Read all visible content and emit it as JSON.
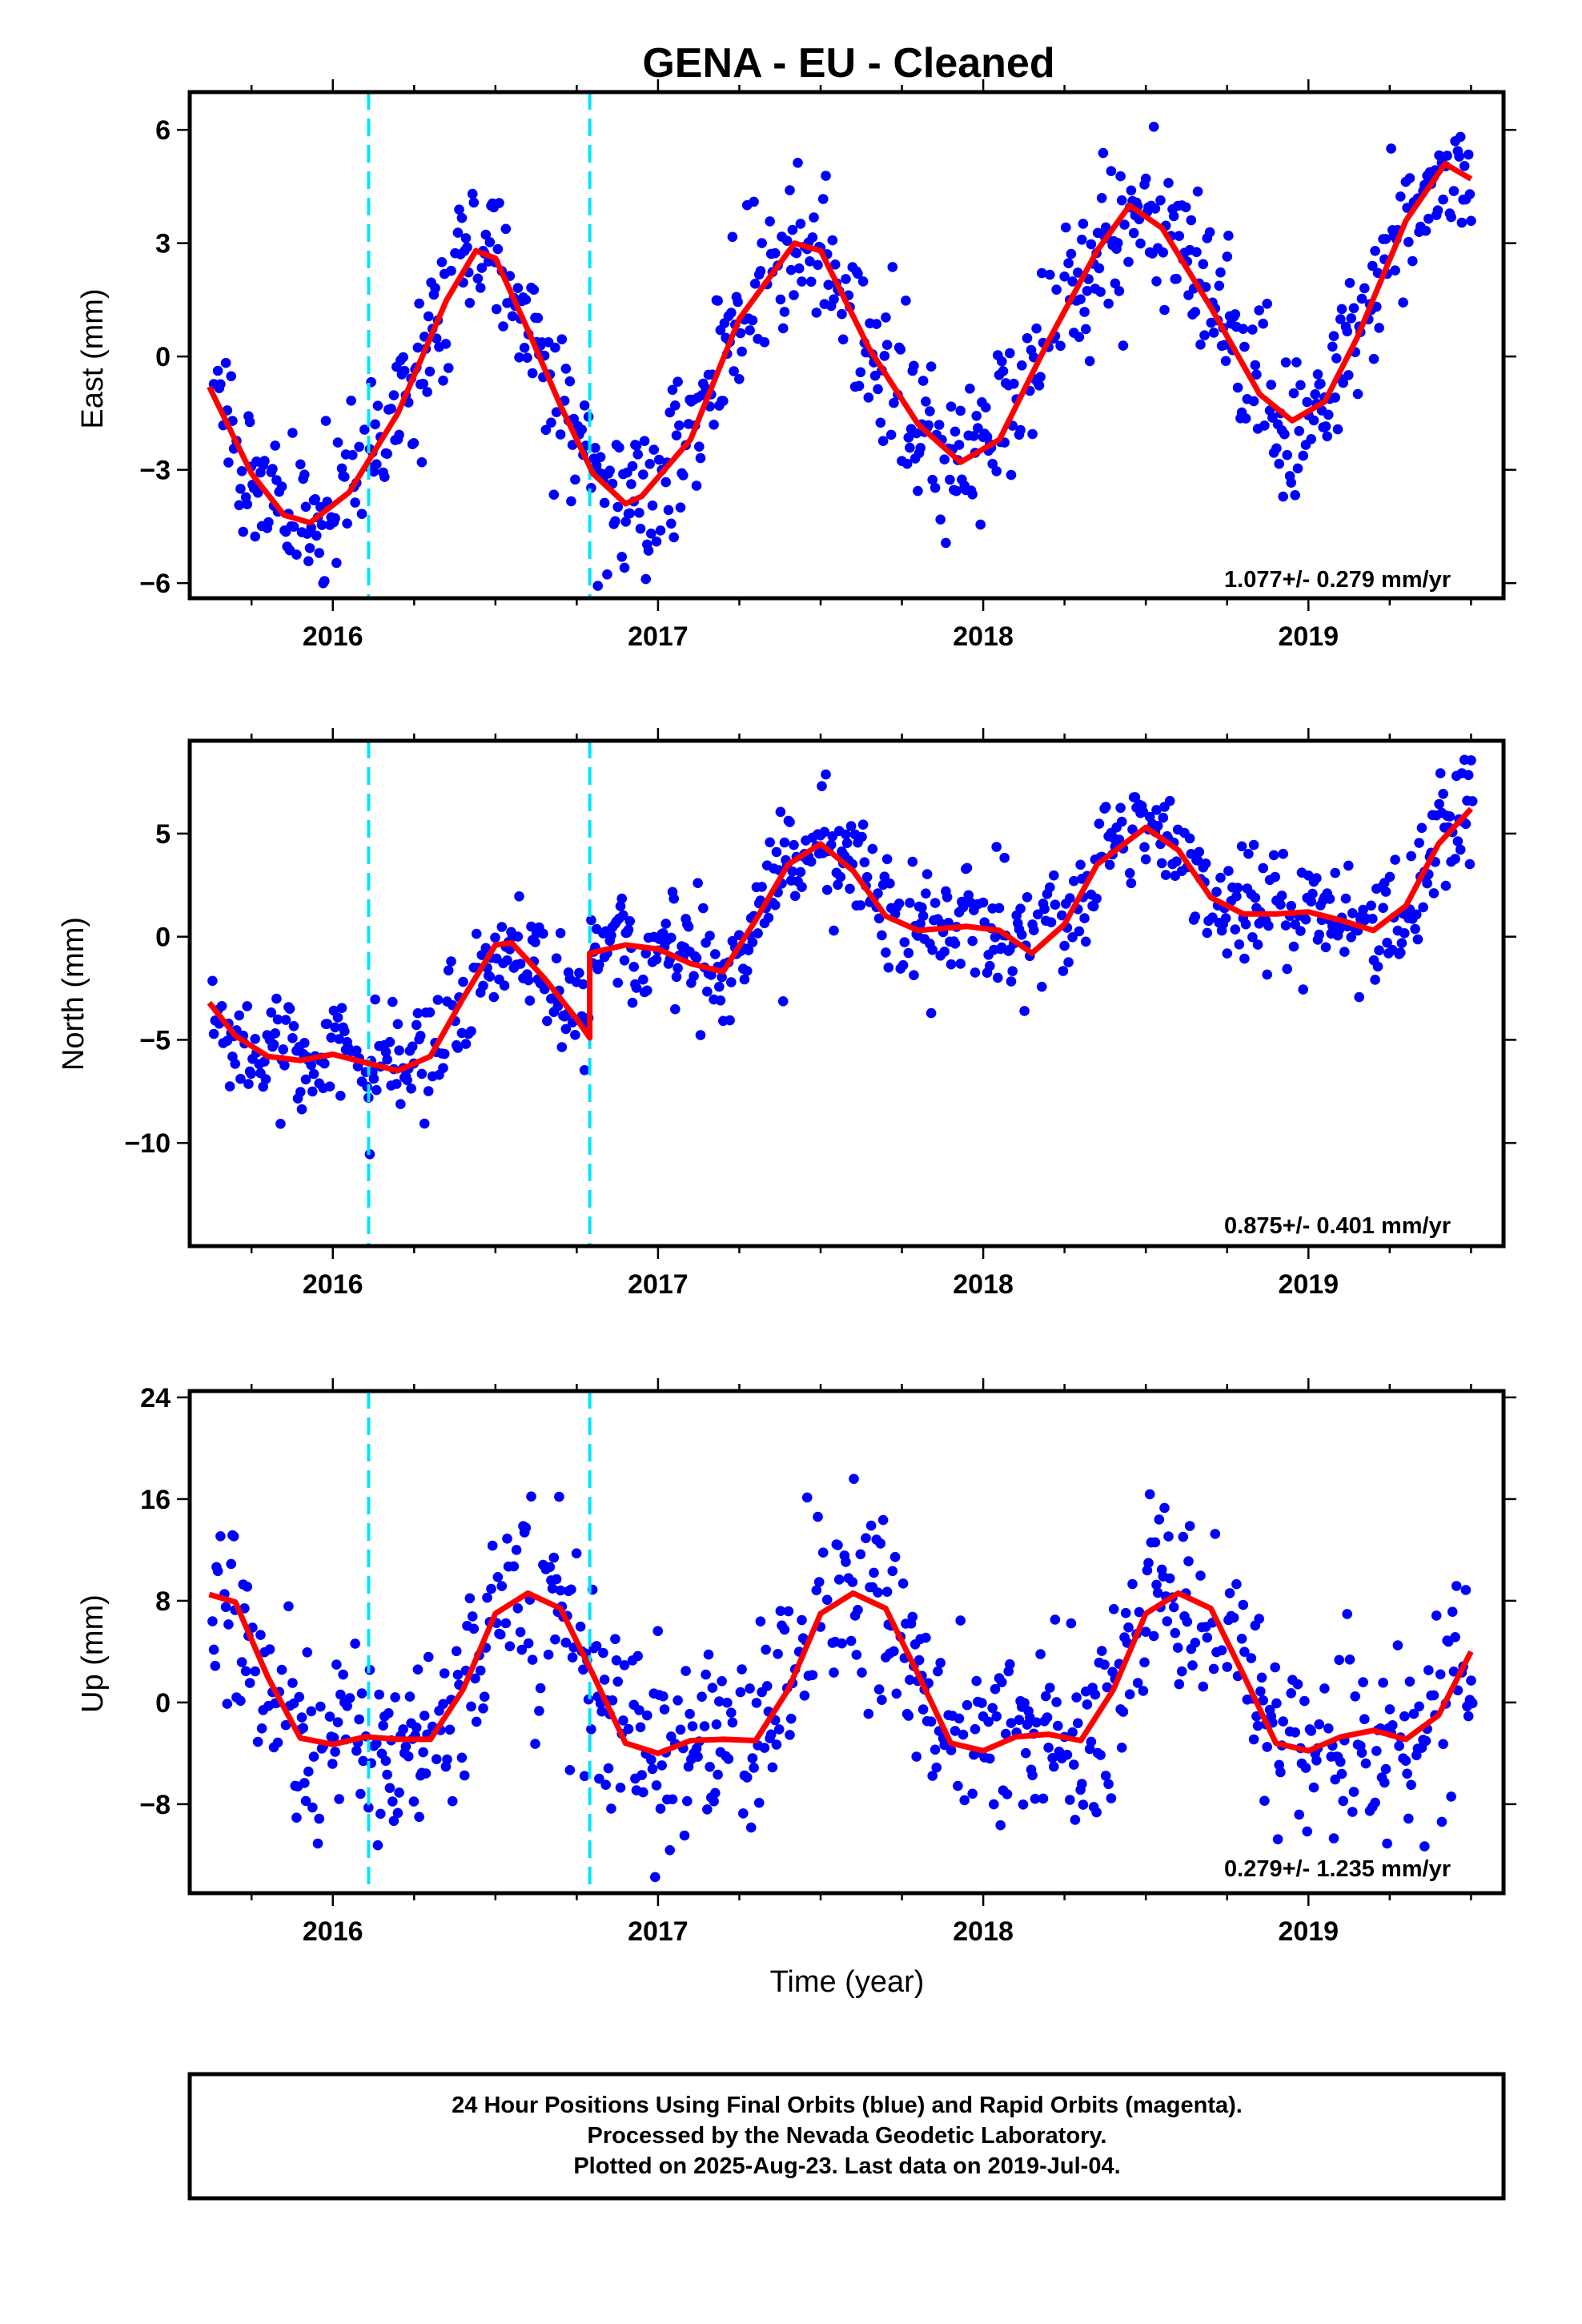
{
  "title": "GENA  - EU - Cleaned",
  "xlabel": "Time (year)",
  "footer": {
    "line1": "24 Hour Positions Using Final Orbits (blue) and Rapid Orbits (magenta).",
    "line2": "Processed by the Nevada Geodetic Laboratory.",
    "line3": "Plotted on 2025-Aug-23. Last data on 2019-Jul-04."
  },
  "colors": {
    "points": "#0000ff",
    "fit": "#ff0000",
    "breaks": "#00e5ff",
    "frame": "#000000"
  },
  "chart_data": [
    {
      "type": "scatter",
      "ylabel": "East (mm)",
      "rate": "1.077+/- 0.279 mm/yr",
      "xlim": [
        2015.56,
        2019.6
      ],
      "ylim": [
        -6.4,
        7.0
      ],
      "xticks": [
        2016,
        2017,
        2018,
        2019
      ],
      "yticks": [
        -6,
        -3,
        0,
        3,
        6
      ],
      "breaks": [
        2016.11,
        2016.79
      ],
      "fit": [
        [
          2015.62,
          -0.8
        ],
        [
          2015.75,
          -3.1
        ],
        [
          2015.85,
          -4.2
        ],
        [
          2015.93,
          -4.4
        ],
        [
          2016.05,
          -3.6
        ],
        [
          2016.2,
          -1.5
        ],
        [
          2016.35,
          1.5
        ],
        [
          2016.44,
          2.8
        ],
        [
          2016.5,
          2.6
        ],
        [
          2016.6,
          0.7
        ],
        [
          2016.7,
          -1.3
        ],
        [
          2016.8,
          -3.1
        ],
        [
          2016.9,
          -3.9
        ],
        [
          2016.95,
          -3.7
        ],
        [
          2017.1,
          -2.2
        ],
        [
          2017.25,
          1.0
        ],
        [
          2017.42,
          3.0
        ],
        [
          2017.5,
          2.8
        ],
        [
          2017.65,
          0.2
        ],
        [
          2017.8,
          -1.8
        ],
        [
          2017.93,
          -2.8
        ],
        [
          2018.05,
          -2.2
        ],
        [
          2018.2,
          0.4
        ],
        [
          2018.35,
          2.8
        ],
        [
          2018.45,
          4.0
        ],
        [
          2018.55,
          3.4
        ],
        [
          2018.7,
          1.3
        ],
        [
          2018.85,
          -1.0
        ],
        [
          2018.95,
          -1.7
        ],
        [
          2019.05,
          -1.2
        ],
        [
          2019.15,
          0.5
        ],
        [
          2019.3,
          3.6
        ],
        [
          2019.42,
          5.1
        ],
        [
          2019.5,
          4.7
        ]
      ]
    },
    {
      "type": "scatter",
      "ylabel": "North (mm)",
      "rate": "0.875+/- 0.401 mm/yr",
      "xlim": [
        2015.56,
        2019.6
      ],
      "ylim": [
        -15.0,
        9.5
      ],
      "xticks": [
        2016,
        2017,
        2018,
        2019
      ],
      "yticks": [
        -10,
        -5,
        0,
        5
      ],
      "breaks": [
        2016.11,
        2016.79
      ],
      "fit": [
        [
          2015.62,
          -3.2
        ],
        [
          2015.7,
          -4.8
        ],
        [
          2015.8,
          -5.8
        ],
        [
          2015.9,
          -6.0
        ],
        [
          2016.0,
          -5.7
        ],
        [
          2016.1,
          -6.1
        ],
        [
          2016.2,
          -6.5
        ],
        [
          2016.3,
          -5.8
        ],
        [
          2016.4,
          -3.0
        ],
        [
          2016.5,
          -0.4
        ],
        [
          2016.55,
          -0.3
        ],
        [
          2016.65,
          -2.0
        ],
        [
          2016.75,
          -4.0
        ],
        [
          2016.79,
          -4.9
        ],
        [
          2016.79,
          -0.8
        ],
        [
          2016.9,
          -0.4
        ],
        [
          2017.0,
          -0.6
        ],
        [
          2017.1,
          -1.3
        ],
        [
          2017.2,
          -1.7
        ],
        [
          2017.3,
          0.8
        ],
        [
          2017.4,
          3.5
        ],
        [
          2017.5,
          4.5
        ],
        [
          2017.6,
          3.2
        ],
        [
          2017.7,
          1.0
        ],
        [
          2017.8,
          0.3
        ],
        [
          2017.95,
          0.5
        ],
        [
          2018.05,
          0.3
        ],
        [
          2018.15,
          -0.8
        ],
        [
          2018.25,
          0.6
        ],
        [
          2018.35,
          3.5
        ],
        [
          2018.5,
          5.3
        ],
        [
          2018.6,
          4.2
        ],
        [
          2018.7,
          1.9
        ],
        [
          2018.8,
          1.1
        ],
        [
          2018.9,
          1.1
        ],
        [
          2019.0,
          1.2
        ],
        [
          2019.1,
          0.8
        ],
        [
          2019.2,
          0.3
        ],
        [
          2019.3,
          1.5
        ],
        [
          2019.4,
          4.5
        ],
        [
          2019.5,
          6.2
        ]
      ]
    },
    {
      "type": "scatter",
      "ylabel": "Up (mm)",
      "rate": "0.279+/- 1.235 mm/yr",
      "xlim": [
        2015.56,
        2019.6
      ],
      "ylim": [
        -15.0,
        24.5
      ],
      "xticks": [
        2016,
        2017,
        2018,
        2019
      ],
      "yticks": [
        -8,
        0,
        8,
        16,
        24
      ],
      "breaks": [
        2016.11,
        2016.79
      ],
      "fit": [
        [
          2015.62,
          8.5
        ],
        [
          2015.7,
          7.9
        ],
        [
          2015.8,
          2.0
        ],
        [
          2015.9,
          -2.8
        ],
        [
          2016.0,
          -3.3
        ],
        [
          2016.1,
          -2.7
        ],
        [
          2016.2,
          -2.9
        ],
        [
          2016.3,
          -2.9
        ],
        [
          2016.4,
          1.0
        ],
        [
          2016.5,
          7.0
        ],
        [
          2016.6,
          8.6
        ],
        [
          2016.7,
          7.4
        ],
        [
          2016.8,
          2.2
        ],
        [
          2016.9,
          -3.2
        ],
        [
          2017.0,
          -4.0
        ],
        [
          2017.1,
          -3.0
        ],
        [
          2017.2,
          -2.9
        ],
        [
          2017.3,
          -3.0
        ],
        [
          2017.4,
          1.0
        ],
        [
          2017.5,
          7.0
        ],
        [
          2017.6,
          8.6
        ],
        [
          2017.7,
          7.4
        ],
        [
          2017.8,
          2.2
        ],
        [
          2017.9,
          -3.2
        ],
        [
          2018.0,
          -3.8
        ],
        [
          2018.1,
          -2.7
        ],
        [
          2018.2,
          -2.5
        ],
        [
          2018.3,
          -3.0
        ],
        [
          2018.4,
          1.0
        ],
        [
          2018.5,
          7.0
        ],
        [
          2018.6,
          8.6
        ],
        [
          2018.7,
          7.4
        ],
        [
          2018.8,
          2.2
        ],
        [
          2018.9,
          -3.2
        ],
        [
          2019.0,
          -3.8
        ],
        [
          2019.1,
          -2.7
        ],
        [
          2019.2,
          -2.2
        ],
        [
          2019.3,
          -2.9
        ],
        [
          2019.4,
          -1.0
        ],
        [
          2019.5,
          4.0
        ]
      ]
    }
  ]
}
